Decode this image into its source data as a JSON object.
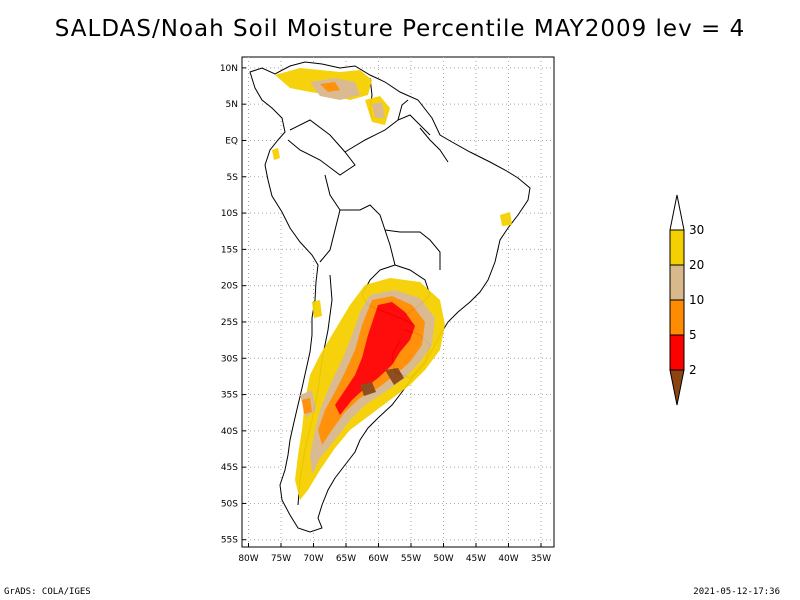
{
  "title": "SALDAS/Noah Soil Moisture Percentile MAY2009 lev = 4",
  "footer": {
    "left": "GrADS: COLA/IGES",
    "right": "2021-05-12-17:36"
  },
  "map": {
    "lat_ticks": [
      "10N",
      "5N",
      "EQ",
      "5S",
      "10S",
      "15S",
      "20S",
      "25S",
      "30S",
      "35S",
      "40S",
      "45S",
      "50S",
      "55S"
    ],
    "lon_ticks": [
      "80W",
      "75W",
      "70W",
      "65W",
      "60W",
      "55W",
      "50W",
      "45W",
      "40W",
      "35W"
    ],
    "grid": true
  },
  "legend": {
    "labels": [
      "30",
      "20",
      "10",
      "5",
      "2"
    ],
    "colors": [
      "#ffffff",
      "#f5d000",
      "#d9b88c",
      "#ff8c00",
      "#ff0000",
      "#8b4513"
    ]
  },
  "colors": {
    "very_dry": "#8b4513",
    "dry": "#ff0000",
    "moderate": "#ff8c00",
    "slight": "#d9b88c",
    "near_normal": "#f5d000"
  }
}
